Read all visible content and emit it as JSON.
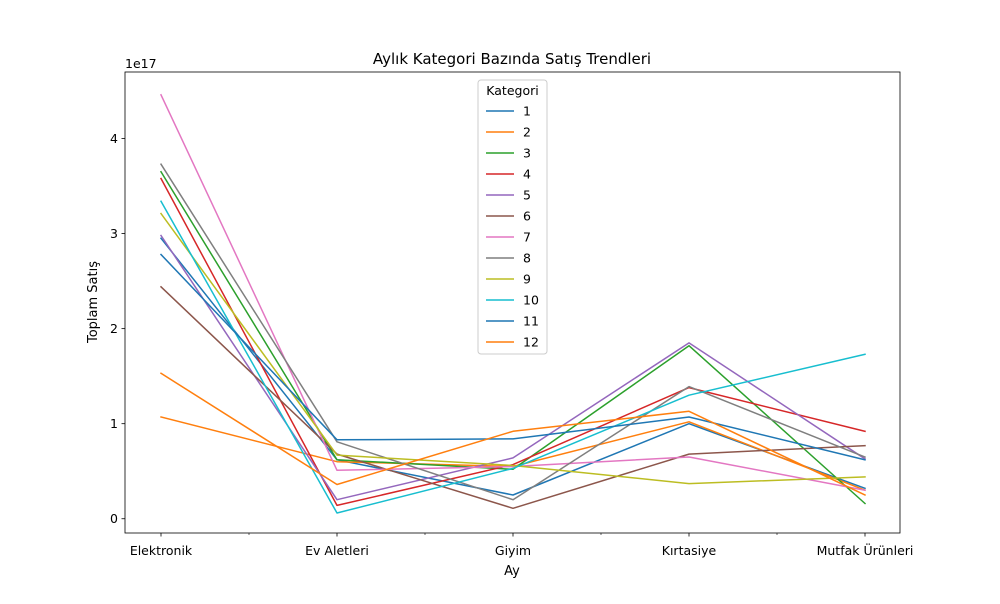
{
  "chart_data": {
    "type": "line",
    "title": "Aylık Kategori Bazında Satış Trendleri",
    "xlabel": "Ay",
    "ylabel": "Toplam Satış",
    "y_offset_label": "1e17",
    "categories": [
      "Elektronik",
      "Ev Aletleri",
      "Giyim",
      "Kırtasiye",
      "Mutfak Ürünleri"
    ],
    "y_ticks": [
      0,
      1,
      2,
      3,
      4
    ],
    "y_tick_labels": [
      "0",
      "1",
      "2",
      "3",
      "4"
    ],
    "y_scale": 1e+17,
    "ylim": [
      -0.15,
      4.7
    ],
    "grid": false,
    "legend": {
      "title": "Kategori",
      "placement": "upper-center"
    },
    "series": [
      {
        "name": "1",
        "color": "#1f77b4",
        "values": [
          2.95,
          0.62,
          0.25,
          1.0,
          0.32
        ]
      },
      {
        "name": "2",
        "color": "#ff7f0e",
        "values": [
          1.07,
          0.6,
          0.55,
          1.02,
          0.3
        ]
      },
      {
        "name": "3",
        "color": "#2ca02c",
        "values": [
          3.65,
          0.62,
          0.52,
          1.82,
          0.16
        ]
      },
      {
        "name": "4",
        "color": "#d62728",
        "values": [
          3.58,
          0.14,
          0.57,
          1.38,
          0.92
        ]
      },
      {
        "name": "5",
        "color": "#9467bd",
        "values": [
          2.98,
          0.2,
          0.64,
          1.85,
          0.63
        ]
      },
      {
        "name": "6",
        "color": "#8c564b",
        "values": [
          2.44,
          0.68,
          0.11,
          0.68,
          0.77
        ]
      },
      {
        "name": "7",
        "color": "#e377c2",
        "values": [
          4.46,
          0.51,
          0.55,
          0.65,
          0.3
        ]
      },
      {
        "name": "8",
        "color": "#7f7f7f",
        "values": [
          3.73,
          0.81,
          0.2,
          1.39,
          0.65
        ]
      },
      {
        "name": "9",
        "color": "#bcbd22",
        "values": [
          3.21,
          0.67,
          0.56,
          0.37,
          0.44
        ]
      },
      {
        "name": "10",
        "color": "#17becf",
        "values": [
          3.34,
          0.06,
          0.53,
          1.3,
          1.73
        ]
      },
      {
        "name": "11",
        "color": "#1f77b4",
        "values": [
          2.78,
          0.83,
          0.84,
          1.07,
          0.62
        ]
      },
      {
        "name": "12",
        "color": "#ff7f0e",
        "values": [
          1.53,
          0.36,
          0.92,
          1.13,
          0.25
        ]
      }
    ]
  }
}
